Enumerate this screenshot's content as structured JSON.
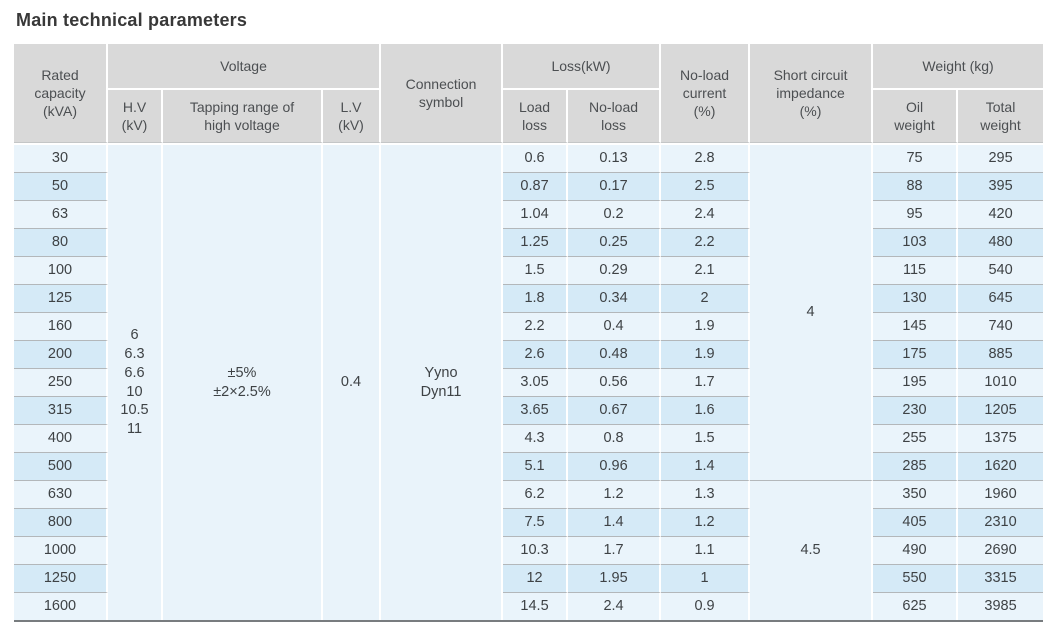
{
  "title": "Main technical parameters",
  "colors": {
    "header_bg": "#d9d9d9",
    "row_light": "#eaf4fb",
    "row_dark": "#d5eaf7",
    "merged_bg": "#e9f3fa",
    "row_separator": "#b3b7ba",
    "table_bottom_border": "#787c7f",
    "text": "#3e4245"
  },
  "table": {
    "header": {
      "rated_capacity": "Rated\ncapacity\n(kVA)",
      "voltage_group": "Voltage",
      "hv": "H.V\n(kV)",
      "tapping": "Tapping range of\nhigh voltage",
      "lv": "L.V\n(kV)",
      "connection": "Connection\nsymbol",
      "loss_group": "Loss(kW)",
      "load_loss": "Load\nloss",
      "no_load_loss": "No-load\nloss",
      "no_load_current": "No-load\ncurrent\n(%)",
      "short_circuit": "Short circuit\nimpedance\n(%)",
      "weight_group": "Weight (kg)",
      "oil_weight": "Oil\nweight",
      "total_weight": "Total\nweight"
    },
    "merged": {
      "hv_values": "6\n6.3\n6.6\n10\n10.5\n11",
      "tapping_range": "±5%\n±2×2.5%",
      "lv_value": "0.4",
      "connection_symbol": "Yyno\nDyn11",
      "impedance_group1": "4",
      "impedance_group2": "4.5"
    },
    "rows": [
      {
        "capacity": "30",
        "load_loss": "0.6",
        "no_load_loss": "0.13",
        "no_load_current": "2.8",
        "oil_weight": "75",
        "total_weight": "295"
      },
      {
        "capacity": "50",
        "load_loss": "0.87",
        "no_load_loss": "0.17",
        "no_load_current": "2.5",
        "oil_weight": "88",
        "total_weight": "395"
      },
      {
        "capacity": "63",
        "load_loss": "1.04",
        "no_load_loss": "0.2",
        "no_load_current": "2.4",
        "oil_weight": "95",
        "total_weight": "420"
      },
      {
        "capacity": "80",
        "load_loss": "1.25",
        "no_load_loss": "0.25",
        "no_load_current": "2.2",
        "oil_weight": "103",
        "total_weight": "480"
      },
      {
        "capacity": "100",
        "load_loss": "1.5",
        "no_load_loss": "0.29",
        "no_load_current": "2.1",
        "oil_weight": "115",
        "total_weight": "540"
      },
      {
        "capacity": "125",
        "load_loss": "1.8",
        "no_load_loss": "0.34",
        "no_load_current": "2",
        "oil_weight": "130",
        "total_weight": "645"
      },
      {
        "capacity": "160",
        "load_loss": "2.2",
        "no_load_loss": "0.4",
        "no_load_current": "1.9",
        "oil_weight": "145",
        "total_weight": "740"
      },
      {
        "capacity": "200",
        "load_loss": "2.6",
        "no_load_loss": "0.48",
        "no_load_current": "1.9",
        "oil_weight": "175",
        "total_weight": "885"
      },
      {
        "capacity": "250",
        "load_loss": "3.05",
        "no_load_loss": "0.56",
        "no_load_current": "1.7",
        "oil_weight": "195",
        "total_weight": "1010"
      },
      {
        "capacity": "315",
        "load_loss": "3.65",
        "no_load_loss": "0.67",
        "no_load_current": "1.6",
        "oil_weight": "230",
        "total_weight": "1205"
      },
      {
        "capacity": "400",
        "load_loss": "4.3",
        "no_load_loss": "0.8",
        "no_load_current": "1.5",
        "oil_weight": "255",
        "total_weight": "1375"
      },
      {
        "capacity": "500",
        "load_loss": "5.1",
        "no_load_loss": "0.96",
        "no_load_current": "1.4",
        "oil_weight": "285",
        "total_weight": "1620"
      },
      {
        "capacity": "630",
        "load_loss": "6.2",
        "no_load_loss": "1.2",
        "no_load_current": "1.3",
        "oil_weight": "350",
        "total_weight": "1960"
      },
      {
        "capacity": "800",
        "load_loss": "7.5",
        "no_load_loss": "1.4",
        "no_load_current": "1.2",
        "oil_weight": "405",
        "total_weight": "2310"
      },
      {
        "capacity": "1000",
        "load_loss": "10.3",
        "no_load_loss": "1.7",
        "no_load_current": "1.1",
        "oil_weight": "490",
        "total_weight": "2690"
      },
      {
        "capacity": "1250",
        "load_loss": "12",
        "no_load_loss": "1.95",
        "no_load_current": "1",
        "oil_weight": "550",
        "total_weight": "3315"
      },
      {
        "capacity": "1600",
        "load_loss": "14.5",
        "no_load_loss": "2.4",
        "no_load_current": "0.9",
        "oil_weight": "625",
        "total_weight": "3985"
      }
    ]
  }
}
